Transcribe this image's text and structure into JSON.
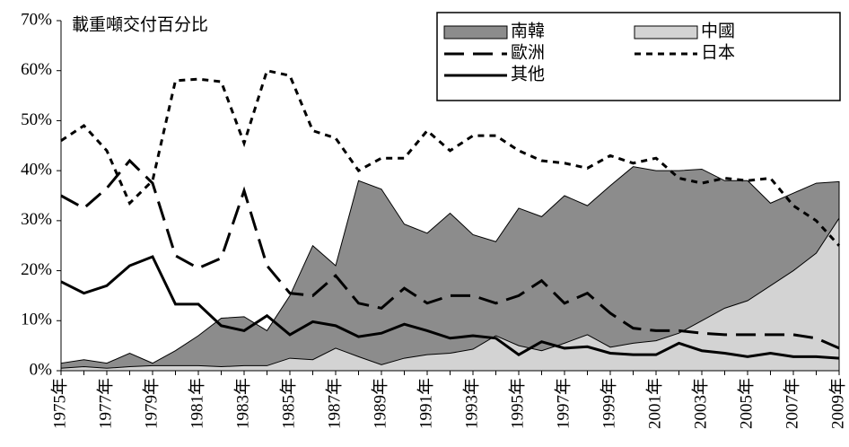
{
  "chart_data": {
    "type": "line",
    "title": "載重噸交付百分比",
    "categories": [
      "1975年",
      null,
      "1977年",
      null,
      "1979年",
      null,
      "1981年",
      null,
      "1983年",
      null,
      "1985年",
      null,
      "1987年",
      null,
      "1989年",
      null,
      "1991年",
      null,
      "1993年",
      null,
      "1995年",
      null,
      "1997年",
      null,
      "1999年",
      null,
      "2001年",
      null,
      "2003年",
      null,
      "2005年",
      null,
      "2007年",
      null,
      "2009年"
    ],
    "ylim": [
      0,
      70
    ],
    "yticks": [
      {
        "value": 0,
        "label": "0%"
      },
      {
        "value": 10,
        "label": "10%"
      },
      {
        "value": 20,
        "label": "20%"
      },
      {
        "value": 30,
        "label": "30%"
      },
      {
        "value": 40,
        "label": "40%"
      },
      {
        "value": 50,
        "label": "50%"
      },
      {
        "value": 60,
        "label": "60%"
      },
      {
        "value": 70,
        "label": "70%"
      }
    ],
    "legend": "top-right",
    "series": [
      {
        "name": "南韓",
        "style": "area",
        "color": "#8c8c8c",
        "values": [
          1.5,
          2.2,
          1.5,
          3.5,
          1.5,
          4,
          7,
          10.5,
          10.8,
          8,
          15,
          25,
          21,
          38,
          36.3,
          29.3,
          27.5,
          31.5,
          27.2,
          25.8,
          32.5,
          30.8,
          35,
          33,
          37,
          40.8,
          40,
          40,
          40.3,
          38,
          38,
          33.5,
          35.5,
          37.5,
          37.8
        ]
      },
      {
        "name": "中國",
        "style": "area",
        "color": "#d3d3d3",
        "values": [
          0.5,
          0.8,
          0.5,
          0.8,
          1,
          1,
          1,
          0.8,
          1,
          1,
          2.5,
          2.2,
          4.5,
          2.8,
          1.2,
          2.5,
          3.2,
          3.5,
          4.3,
          7,
          5,
          4,
          5.5,
          7.2,
          4.7,
          5.5,
          6,
          7.5,
          10,
          12.5,
          14,
          17,
          20,
          23.5,
          30.5
        ]
      },
      {
        "name": "歐洲",
        "style": "long-dash",
        "color": "#000000",
        "values": [
          35,
          32.5,
          36.5,
          42,
          37.5,
          23,
          20.5,
          22.5,
          36,
          21,
          15.5,
          15,
          19,
          13.5,
          12.5,
          16.5,
          13.5,
          15,
          15,
          13.5,
          15,
          18,
          13.5,
          15.5,
          11.5,
          8.5,
          8,
          8,
          7.5,
          7.2,
          7.2,
          7.2,
          7.2,
          6.5,
          4.5
        ]
      },
      {
        "name": "日本",
        "style": "short-dash",
        "color": "#000000",
        "values": [
          46,
          49,
          44,
          33.5,
          38,
          58,
          58.3,
          57.8,
          45.5,
          60,
          59,
          48,
          46.5,
          40,
          42.5,
          42.5,
          48,
          44,
          47,
          47,
          44,
          42,
          41.5,
          40.5,
          43,
          41.5,
          42.5,
          38.5,
          37.5,
          38.5,
          38,
          38.5,
          33,
          30,
          25
        ]
      },
      {
        "name": "其他",
        "style": "solid",
        "color": "#000000",
        "values": [
          17.8,
          15.5,
          17,
          21,
          22.8,
          13.3,
          13.3,
          9,
          8,
          11,
          7.2,
          9.8,
          9,
          6.8,
          7.5,
          9.3,
          8,
          6.5,
          7,
          6.5,
          3.2,
          5.8,
          4.5,
          4.8,
          3.5,
          3.2,
          3.2,
          5.5,
          4,
          3.5,
          2.8,
          3.5,
          2.8,
          2.8,
          2.5
        ]
      }
    ]
  }
}
